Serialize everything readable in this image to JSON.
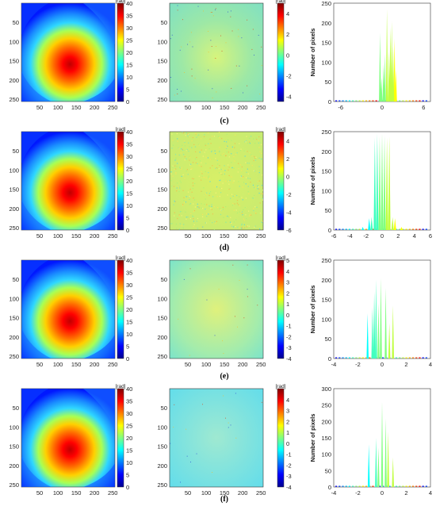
{
  "chart_data": [
    {
      "row": "row1",
      "type": "heatmap",
      "panel": "phase",
      "colorbar_unit": "[rad]",
      "clim": [
        0,
        40
      ],
      "colorbar_ticks": [
        0,
        5,
        10,
        15,
        20,
        25,
        30,
        35,
        40
      ],
      "x_ticks": [
        50,
        100,
        150,
        200,
        250
      ],
      "y_ticks": [
        50,
        100,
        150,
        200,
        250
      ],
      "peak_center": [
        135,
        160
      ]
    },
    {
      "row": "row1",
      "type": "heatmap",
      "panel": "error",
      "colorbar_unit": "[rad]",
      "clim": [
        -4.5,
        5
      ],
      "colorbar_ticks": [
        -4,
        -2,
        0,
        2,
        4
      ],
      "x_ticks": [
        50,
        100,
        150,
        200,
        250
      ],
      "y_ticks": [
        50,
        100,
        150,
        200,
        250
      ]
    },
    {
      "row": "row1",
      "type": "bar",
      "panel": "histogram",
      "ylabel": "Number of pixels",
      "xlim": [
        -7,
        7
      ],
      "ylim": [
        0,
        250
      ],
      "x_ticks": [
        -6,
        0,
        6
      ],
      "y_ticks": [
        0,
        50,
        100,
        150,
        200,
        250
      ],
      "bars": [
        {
          "x": -0.3,
          "y": 175
        },
        {
          "x": 0.7,
          "y": 235
        },
        {
          "x": 1.4,
          "y": 205
        },
        {
          "x": 1.8,
          "y": 160
        },
        {
          "x": -0.1,
          "y": 60
        },
        {
          "x": 0.2,
          "y": 95
        },
        {
          "x": 0.4,
          "y": 120
        },
        {
          "x": 1.0,
          "y": 130
        },
        {
          "x": 1.2,
          "y": 190
        },
        {
          "x": 1.6,
          "y": 140
        },
        {
          "x": 2.0,
          "y": 80
        }
      ]
    },
    {
      "row": "row2",
      "caption": "(c)",
      "type": "heatmap",
      "panel": "phase",
      "colorbar_unit": "[rad]",
      "clim": [
        0,
        40
      ],
      "colorbar_ticks": [
        0,
        5,
        10,
        15,
        20,
        25,
        30,
        35,
        40
      ],
      "x_ticks": [
        50,
        100,
        150,
        200,
        250
      ],
      "y_ticks": [
        50,
        100,
        150,
        200,
        250
      ],
      "peak_center": [
        135,
        165
      ]
    },
    {
      "row": "row2",
      "type": "heatmap",
      "panel": "error",
      "colorbar_unit": "[rad]",
      "clim": [
        -6,
        5
      ],
      "colorbar_ticks": [
        -6,
        -4,
        -2,
        0,
        2,
        4
      ],
      "x_ticks": [
        50,
        100,
        150,
        200,
        250
      ],
      "y_ticks": [
        50,
        100,
        150,
        200,
        250
      ]
    },
    {
      "row": "row2",
      "type": "bar",
      "panel": "histogram",
      "ylabel": "Number of pixels",
      "xlim": [
        -6,
        6
      ],
      "ylim": [
        0,
        250
      ],
      "x_ticks": [
        -6,
        -4,
        -2,
        0,
        2,
        4,
        6
      ],
      "y_ticks": [
        0,
        50,
        100,
        150,
        200,
        250
      ],
      "bars": [
        {
          "x": -0.9,
          "y": 235
        },
        {
          "x": -0.6,
          "y": 245
        },
        {
          "x": -0.3,
          "y": 238
        },
        {
          "x": 0,
          "y": 245
        },
        {
          "x": 0.3,
          "y": 240
        },
        {
          "x": 0.6,
          "y": 235
        },
        {
          "x": 0.9,
          "y": 238
        },
        {
          "x": -1.6,
          "y": 30
        },
        {
          "x": -1.3,
          "y": 33
        },
        {
          "x": 1.3,
          "y": 33
        },
        {
          "x": 1.6,
          "y": 30
        },
        {
          "x": -2.4,
          "y": 8
        },
        {
          "x": 2.4,
          "y": 8
        }
      ]
    },
    {
      "row": "row3",
      "caption": "(d)",
      "type": "heatmap",
      "panel": "phase",
      "colorbar_unit": "[rad]",
      "clim": [
        0,
        40
      ],
      "colorbar_ticks": [
        0,
        5,
        10,
        15,
        20,
        25,
        30,
        35,
        40
      ],
      "x_ticks": [
        50,
        100,
        150,
        200,
        250
      ],
      "y_ticks": [
        50,
        100,
        150,
        200,
        250
      ],
      "peak_center": [
        135,
        155
      ]
    },
    {
      "row": "row3",
      "type": "heatmap",
      "panel": "error",
      "colorbar_unit": "[rad]",
      "clim": [
        -4,
        5
      ],
      "colorbar_ticks": [
        -4,
        -3,
        -2,
        -1,
        0,
        1,
        2,
        3,
        4,
        5
      ],
      "x_ticks": [
        50,
        100,
        150,
        200,
        250
      ],
      "y_ticks": [
        50,
        100,
        150,
        200,
        250
      ]
    },
    {
      "row": "row3",
      "type": "bar",
      "panel": "histogram",
      "ylabel": "Number of pixels",
      "xlim": [
        -4,
        4
      ],
      "ylim": [
        0,
        250
      ],
      "x_ticks": [
        -4,
        -2,
        0,
        2,
        4
      ],
      "y_ticks": [
        0,
        50,
        100,
        150,
        200,
        250
      ],
      "bars": [
        {
          "x": -1.2,
          "y": 115
        },
        {
          "x": -0.8,
          "y": 130
        },
        {
          "x": -0.5,
          "y": 200
        },
        {
          "x": -0.3,
          "y": 140
        },
        {
          "x": -0.1,
          "y": 205
        },
        {
          "x": 0.3,
          "y": 180
        },
        {
          "x": 0.9,
          "y": 135
        },
        {
          "x": 0.6,
          "y": 90
        },
        {
          "x": -0.65,
          "y": 170
        }
      ]
    },
    {
      "row": "row4",
      "caption": "(e)",
      "type": "heatmap",
      "panel": "phase",
      "colorbar_unit": "[rad]",
      "clim": [
        0,
        40
      ],
      "colorbar_ticks": [
        0,
        5,
        10,
        15,
        20,
        25,
        30,
        35,
        40
      ],
      "x_ticks": [
        50,
        100,
        150,
        200,
        250
      ],
      "y_ticks": [
        50,
        100,
        150,
        200,
        250
      ],
      "peak_center": [
        135,
        160
      ]
    },
    {
      "row": "row4",
      "type": "heatmap",
      "panel": "error",
      "colorbar_unit": "[rad]",
      "clim": [
        -4,
        5
      ],
      "colorbar_ticks": [
        -4,
        -3,
        -2,
        -1,
        0,
        1,
        2,
        3,
        4
      ],
      "x_ticks": [
        50,
        100,
        150,
        200,
        250
      ],
      "y_ticks": [
        50,
        100,
        150,
        200,
        250
      ]
    },
    {
      "row": "row4",
      "type": "bar",
      "panel": "histogram",
      "ylabel": "Number of pixels",
      "xlim": [
        -4,
        4
      ],
      "ylim": [
        0,
        300
      ],
      "x_ticks": [
        -4,
        -2,
        0,
        2,
        4
      ],
      "y_ticks": [
        0,
        50,
        100,
        150,
        200,
        250,
        300
      ],
      "bars": [
        {
          "x": -1.1,
          "y": 130
        },
        {
          "x": -0.5,
          "y": 150
        },
        {
          "x": 0.0,
          "y": 260
        },
        {
          "x": 0.3,
          "y": 210
        },
        {
          "x": 0.9,
          "y": 90
        },
        {
          "x": -0.3,
          "y": 120
        },
        {
          "x": 0.5,
          "y": 170
        }
      ]
    }
  ],
  "captions": {
    "c": "(c)",
    "d": "(d)",
    "e": "(e)",
    "f": "(f)"
  }
}
